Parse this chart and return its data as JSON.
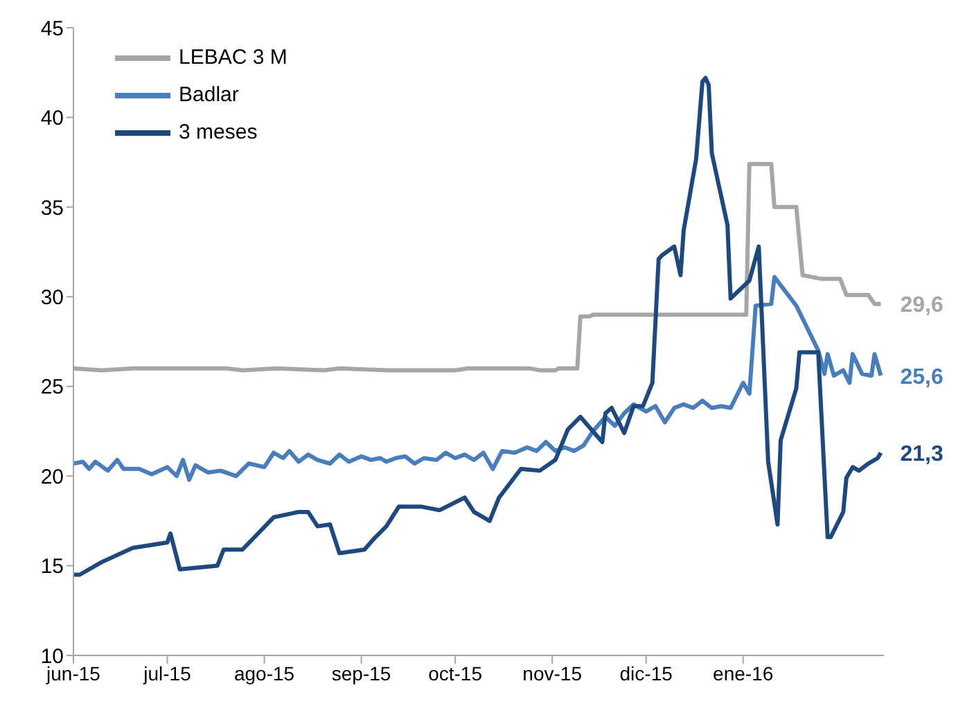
{
  "chart_data": {
    "type": "line",
    "xlim": [
      "2015-06-01",
      "2016-02-15"
    ],
    "ylim": [
      10,
      45
    ],
    "yticks": [
      10,
      15,
      20,
      25,
      30,
      35,
      40,
      45
    ],
    "xticks": [
      {
        "value": "2015-06-01",
        "label": "jun-15"
      },
      {
        "value": "2015-07-01",
        "label": "jul-15"
      },
      {
        "value": "2015-08-01",
        "label": "ago-15"
      },
      {
        "value": "2015-09-01",
        "label": "sep-15"
      },
      {
        "value": "2015-10-01",
        "label": "oct-15"
      },
      {
        "value": "2015-11-01",
        "label": "nov-15"
      },
      {
        "value": "2015-12-01",
        "label": "dic-15"
      },
      {
        "value": "2016-01-01",
        "label": "ene-16"
      }
    ],
    "grid": false,
    "legend": "top left",
    "marker": "none",
    "line_style": "solid",
    "series": [
      {
        "name": "LEBAC 3 M",
        "color": "#a6a6a6",
        "x": [
          "2015-06-01",
          "2015-06-10",
          "2015-06-20",
          "2015-07-20",
          "2015-07-25",
          "2015-08-05",
          "2015-08-20",
          "2015-08-25",
          "2015-09-10",
          "2015-10-01",
          "2015-10-05",
          "2015-10-25",
          "2015-10-28",
          "2015-11-02",
          "2015-11-03",
          "2015-11-09",
          "2015-11-10",
          "2015-11-13",
          "2015-11-14",
          "2016-01-02",
          "2016-01-03",
          "2016-01-10",
          "2016-01-11",
          "2016-01-18",
          "2016-01-20",
          "2016-01-26",
          "2016-02-01",
          "2016-02-03",
          "2016-02-10",
          "2016-02-12",
          "2016-02-14"
        ],
        "values": [
          26.0,
          25.9,
          26.0,
          26.0,
          25.9,
          26.0,
          25.9,
          26.0,
          25.9,
          25.9,
          26.0,
          26.0,
          25.9,
          25.9,
          26.0,
          26.0,
          28.9,
          28.9,
          29.0,
          29.0,
          37.4,
          37.4,
          35.0,
          35.0,
          31.2,
          31.0,
          31.0,
          30.1,
          30.1,
          29.6,
          29.6
        ]
      },
      {
        "name": "Badlar",
        "color": "#4a7ebb",
        "x": [
          "2015-06-01",
          "2015-06-04",
          "2015-06-06",
          "2015-06-08",
          "2015-06-12",
          "2015-06-15",
          "2015-06-17",
          "2015-06-22",
          "2015-06-26",
          "2015-07-01",
          "2015-07-04",
          "2015-07-06",
          "2015-07-08",
          "2015-07-10",
          "2015-07-14",
          "2015-07-18",
          "2015-07-23",
          "2015-07-27",
          "2015-08-01",
          "2015-08-04",
          "2015-08-07",
          "2015-08-09",
          "2015-08-12",
          "2015-08-15",
          "2015-08-18",
          "2015-08-22",
          "2015-08-25",
          "2015-08-28",
          "2015-09-01",
          "2015-09-04",
          "2015-09-07",
          "2015-09-09",
          "2015-09-12",
          "2015-09-15",
          "2015-09-18",
          "2015-09-21",
          "2015-09-25",
          "2015-09-28",
          "2015-10-01",
          "2015-10-04",
          "2015-10-07",
          "2015-10-10",
          "2015-10-13",
          "2015-10-16",
          "2015-10-20",
          "2015-10-24",
          "2015-10-27",
          "2015-10-30",
          "2015-11-02",
          "2015-11-05",
          "2015-11-08",
          "2015-11-11",
          "2015-11-14",
          "2015-11-18",
          "2015-11-21",
          "2015-11-24",
          "2015-11-27",
          "2015-12-01",
          "2015-12-04",
          "2015-12-07",
          "2015-12-10",
          "2015-12-13",
          "2015-12-16",
          "2015-12-19",
          "2015-12-22",
          "2015-12-25",
          "2015-12-28",
          "2016-01-01",
          "2016-01-03",
          "2016-01-05",
          "2016-01-10",
          "2016-01-11",
          "2016-01-18",
          "2016-01-25",
          "2016-01-27",
          "2016-01-28",
          "2016-01-30",
          "2016-02-02",
          "2016-02-04",
          "2016-02-05",
          "2016-02-08",
          "2016-02-11",
          "2016-02-12",
          "2016-02-14"
        ],
        "values": [
          20.7,
          20.8,
          20.4,
          20.8,
          20.3,
          20.9,
          20.4,
          20.4,
          20.1,
          20.5,
          20.0,
          20.9,
          19.8,
          20.6,
          20.2,
          20.3,
          20.0,
          20.7,
          20.5,
          21.3,
          21.0,
          21.4,
          20.8,
          21.2,
          20.9,
          20.7,
          21.2,
          20.8,
          21.1,
          20.9,
          21.0,
          20.8,
          21.0,
          21.1,
          20.7,
          21.0,
          20.9,
          21.3,
          21.0,
          21.2,
          20.9,
          21.3,
          20.4,
          21.4,
          21.3,
          21.6,
          21.4,
          21.9,
          21.4,
          21.6,
          21.4,
          21.7,
          22.5,
          23.3,
          22.8,
          23.5,
          24.0,
          23.6,
          23.9,
          23.0,
          23.8,
          24.0,
          23.8,
          24.2,
          23.8,
          23.9,
          23.8,
          25.2,
          24.6,
          29.5,
          29.6,
          31.1,
          29.5,
          27.0,
          25.7,
          26.8,
          25.6,
          25.9,
          25.2,
          26.8,
          25.7,
          25.6,
          26.8,
          25.6
        ]
      },
      {
        "name": "3 meses",
        "color": "#1f497d",
        "x": [
          "2015-06-01",
          "2015-06-03",
          "2015-06-10",
          "2015-06-20",
          "2015-07-01",
          "2015-07-02",
          "2015-07-05",
          "2015-07-17",
          "2015-07-19",
          "2015-07-25",
          "2015-08-04",
          "2015-08-12",
          "2015-08-15",
          "2015-08-18",
          "2015-08-22",
          "2015-08-25",
          "2015-09-02",
          "2015-09-05",
          "2015-09-09",
          "2015-09-13",
          "2015-09-20",
          "2015-09-26",
          "2015-10-04",
          "2015-10-07",
          "2015-10-12",
          "2015-10-15",
          "2015-10-22",
          "2015-10-28",
          "2015-11-02",
          "2015-11-06",
          "2015-11-10",
          "2015-11-17",
          "2015-11-18",
          "2015-11-20",
          "2015-11-24",
          "2015-11-27",
          "2015-11-30",
          "2015-12-03",
          "2015-12-05",
          "2015-12-06",
          "2015-12-10",
          "2015-12-12",
          "2015-12-13",
          "2015-12-17",
          "2015-12-19",
          "2015-12-20",
          "2015-12-21",
          "2015-12-22",
          "2015-12-27",
          "2015-12-28",
          "2016-01-03",
          "2016-01-06",
          "2016-01-09",
          "2016-01-12",
          "2016-01-13",
          "2016-01-18",
          "2016-01-19",
          "2016-01-25",
          "2016-01-28",
          "2016-01-29",
          "2016-02-02",
          "2016-02-03",
          "2016-02-05",
          "2016-02-07",
          "2016-02-10",
          "2016-02-13",
          "2016-02-14"
        ],
        "values": [
          14.5,
          14.5,
          15.2,
          16.0,
          16.3,
          16.8,
          14.8,
          15.0,
          15.9,
          15.9,
          17.7,
          18.0,
          18.0,
          17.2,
          17.3,
          15.7,
          15.9,
          16.5,
          17.2,
          18.3,
          18.3,
          18.1,
          18.8,
          18.0,
          17.5,
          18.8,
          20.4,
          20.3,
          20.9,
          22.6,
          23.3,
          21.9,
          23.5,
          23.8,
          22.4,
          23.9,
          23.9,
          25.2,
          32.1,
          32.3,
          32.8,
          31.2,
          33.7,
          37.7,
          42.0,
          42.2,
          41.8,
          38.0,
          34.0,
          29.9,
          30.9,
          32.8,
          20.8,
          17.3,
          22.0,
          24.9,
          26.9,
          26.9,
          16.6,
          16.6,
          18.0,
          19.9,
          20.5,
          20.3,
          20.7,
          21.0,
          21.3
        ]
      }
    ],
    "annotations": [
      {
        "text": "29,6",
        "x": "2016-02-14",
        "y": 29.6
      },
      {
        "text": "25,6",
        "x": "2016-02-14",
        "y": 25.6
      },
      {
        "text": "21,3",
        "x": "2016-02-14",
        "y": 21.3
      }
    ]
  }
}
